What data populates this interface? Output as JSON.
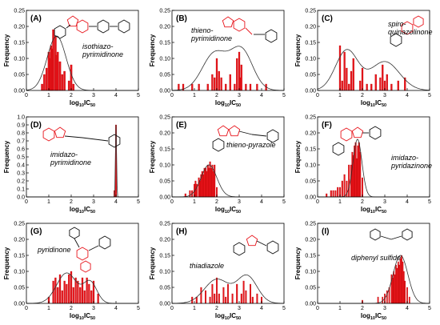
{
  "layout": {
    "cols": 3,
    "rows": 3
  },
  "chart_data": [
    {
      "type": "bar",
      "label": "(A)",
      "compound": "isothiazo-\npyrimidinone",
      "xlabel": "log10IC50",
      "ylabel": "Frequency",
      "xlim": [
        0,
        5
      ],
      "ylim": [
        0,
        0.25
      ],
      "xticks": [
        0,
        1,
        2,
        3,
        4,
        5
      ],
      "yticks": [
        0.0,
        0.05,
        0.1,
        0.15,
        0.2,
        0.25
      ],
      "bin_width": 0.08,
      "bins": [
        {
          "x": 0.7,
          "y": 0.02
        },
        {
          "x": 0.8,
          "y": 0.05
        },
        {
          "x": 0.9,
          "y": 0.07
        },
        {
          "x": 1.0,
          "y": 0.12
        },
        {
          "x": 1.05,
          "y": 0.1
        },
        {
          "x": 1.1,
          "y": 0.14
        },
        {
          "x": 1.15,
          "y": 0.13
        },
        {
          "x": 1.2,
          "y": 0.19
        },
        {
          "x": 1.3,
          "y": 0.17
        },
        {
          "x": 1.35,
          "y": 0.11
        },
        {
          "x": 1.4,
          "y": 0.12
        },
        {
          "x": 1.5,
          "y": 0.09
        },
        {
          "x": 1.6,
          "y": 0.05
        },
        {
          "x": 1.7,
          "y": 0.06
        },
        {
          "x": 1.9,
          "y": 0.03
        },
        {
          "x": 2.0,
          "y": 0.08
        },
        {
          "x": 2.1,
          "y": 0.02
        }
      ],
      "curve": {
        "type": "gauss",
        "mu": 1.35,
        "sigma": 0.42,
        "peak": 0.17
      }
    },
    {
      "type": "bar",
      "label": "(B)",
      "compound": "thieno-\npyrimidinone",
      "xlabel": "log10IC50",
      "ylabel": "Frequency",
      "xlim": [
        0,
        5
      ],
      "ylim": [
        0,
        0.25
      ],
      "xticks": [
        0,
        1,
        2,
        3,
        4,
        5
      ],
      "yticks": [
        0.0,
        0.05,
        0.1,
        0.15,
        0.2,
        0.25
      ],
      "bin_width": 0.07,
      "bins": [
        {
          "x": 0.3,
          "y": 0.02
        },
        {
          "x": 0.5,
          "y": 0.02
        },
        {
          "x": 0.9,
          "y": 0.02
        },
        {
          "x": 1.2,
          "y": 0.02
        },
        {
          "x": 1.6,
          "y": 0.02
        },
        {
          "x": 1.8,
          "y": 0.05
        },
        {
          "x": 1.9,
          "y": 0.04
        },
        {
          "x": 2.0,
          "y": 0.1
        },
        {
          "x": 2.1,
          "y": 0.06
        },
        {
          "x": 2.2,
          "y": 0.04
        },
        {
          "x": 2.4,
          "y": 0.02
        },
        {
          "x": 2.6,
          "y": 0.05
        },
        {
          "x": 2.8,
          "y": 0.02
        },
        {
          "x": 2.9,
          "y": 0.1
        },
        {
          "x": 3.0,
          "y": 0.12
        },
        {
          "x": 3.05,
          "y": 0.04
        },
        {
          "x": 3.1,
          "y": 0.08
        },
        {
          "x": 3.3,
          "y": 0.02
        },
        {
          "x": 3.5,
          "y": 0.02
        },
        {
          "x": 3.8,
          "y": 0.02
        },
        {
          "x": 4.2,
          "y": 0.02
        }
      ],
      "curve": {
        "type": "bimodal",
        "components": [
          {
            "mu": 1.9,
            "sigma": 0.55,
            "peak": 0.115
          },
          {
            "mu": 3.1,
            "sigma": 0.5,
            "peak": 0.125
          }
        ]
      }
    },
    {
      "type": "bar",
      "label": "(C)",
      "compound": "spiro-\nquinazolinone",
      "xlabel": "log10IC50",
      "ylabel": "Frequency",
      "xlim": [
        0,
        5
      ],
      "ylim": [
        0,
        0.25
      ],
      "xticks": [
        0,
        1,
        2,
        3,
        4,
        5
      ],
      "yticks": [
        0.0,
        0.05,
        0.1,
        0.15,
        0.2,
        0.25
      ],
      "bin_width": 0.07,
      "bins": [
        {
          "x": 1.0,
          "y": 0.14
        },
        {
          "x": 1.1,
          "y": 0.03
        },
        {
          "x": 1.2,
          "y": 0.12
        },
        {
          "x": 1.3,
          "y": 0.07
        },
        {
          "x": 1.4,
          "y": 0.02
        },
        {
          "x": 1.5,
          "y": 0.06
        },
        {
          "x": 1.6,
          "y": 0.1
        },
        {
          "x": 1.9,
          "y": 0.03
        },
        {
          "x": 2.0,
          "y": 0.07
        },
        {
          "x": 2.2,
          "y": 0.02
        },
        {
          "x": 2.4,
          "y": 0.02
        },
        {
          "x": 2.6,
          "y": 0.05
        },
        {
          "x": 2.8,
          "y": 0.04
        },
        {
          "x": 2.9,
          "y": 0.08
        },
        {
          "x": 3.0,
          "y": 0.03
        },
        {
          "x": 3.1,
          "y": 0.05
        },
        {
          "x": 3.3,
          "y": 0.02
        },
        {
          "x": 3.6,
          "y": 0.03
        },
        {
          "x": 3.9,
          "y": 0.04
        }
      ],
      "curve": {
        "type": "bimodal",
        "components": [
          {
            "mu": 1.3,
            "sigma": 0.5,
            "peak": 0.125
          },
          {
            "mu": 3.0,
            "sigma": 0.65,
            "peak": 0.09
          }
        ]
      }
    },
    {
      "type": "bar",
      "label": "(D)",
      "compound": "imidazo-\npyrimidinone",
      "xlabel": "log10IC50",
      "ylabel": "Frequency",
      "xlim": [
        0,
        5
      ],
      "ylim": [
        0,
        1.0
      ],
      "xticks": [
        0,
        1,
        2,
        3,
        4,
        5
      ],
      "yticks": [
        0.0,
        0.1,
        0.2,
        0.3,
        0.4,
        0.5,
        0.6,
        0.7,
        0.8,
        0.9,
        1.0
      ],
      "bin_width": 0.06,
      "bins": [
        {
          "x": 3.93,
          "y": 0.08
        },
        {
          "x": 4.0,
          "y": 0.9
        }
      ],
      "curve": {
        "type": "spike",
        "mu": 4.0,
        "sigma": 0.025,
        "peak": 0.9
      }
    },
    {
      "type": "bar",
      "label": "(E)",
      "compound": "thieno-pyrazole",
      "xlabel": "log10IC50",
      "ylabel": "Frequency",
      "xlim": [
        0,
        5
      ],
      "ylim": [
        0,
        0.25
      ],
      "xticks": [
        0,
        1,
        2,
        3,
        4,
        5
      ],
      "yticks": [
        0.0,
        0.05,
        0.1,
        0.15,
        0.2,
        0.25
      ],
      "bin_width": 0.06,
      "bins": [
        {
          "x": 0.6,
          "y": 0.01
        },
        {
          "x": 0.8,
          "y": 0.02
        },
        {
          "x": 0.9,
          "y": 0.02
        },
        {
          "x": 1.0,
          "y": 0.04
        },
        {
          "x": 1.05,
          "y": 0.05
        },
        {
          "x": 1.1,
          "y": 0.04
        },
        {
          "x": 1.2,
          "y": 0.06
        },
        {
          "x": 1.25,
          "y": 0.05
        },
        {
          "x": 1.3,
          "y": 0.07
        },
        {
          "x": 1.35,
          "y": 0.08
        },
        {
          "x": 1.4,
          "y": 0.07
        },
        {
          "x": 1.45,
          "y": 0.09
        },
        {
          "x": 1.5,
          "y": 0.09
        },
        {
          "x": 1.55,
          "y": 0.08
        },
        {
          "x": 1.6,
          "y": 0.1
        },
        {
          "x": 1.65,
          "y": 0.09
        },
        {
          "x": 1.7,
          "y": 0.11
        },
        {
          "x": 1.75,
          "y": 0.09
        },
        {
          "x": 1.8,
          "y": 0.1
        },
        {
          "x": 1.85,
          "y": 0.08
        },
        {
          "x": 1.9,
          "y": 0.1
        },
        {
          "x": 2.0,
          "y": 0.03
        }
      ],
      "curve": {
        "type": "gauss",
        "mu": 1.65,
        "sigma": 0.35,
        "peak": 0.1
      }
    },
    {
      "type": "bar",
      "label": "(F)",
      "compound": "imidazo-\npyridazinone",
      "xlabel": "log10IC50",
      "ylabel": "Frequency",
      "xlim": [
        0,
        5
      ],
      "ylim": [
        0,
        0.25
      ],
      "xticks": [
        0,
        1,
        2,
        3,
        4,
        5
      ],
      "yticks": [
        0.0,
        0.05,
        0.1,
        0.15,
        0.2,
        0.25
      ],
      "bin_width": 0.06,
      "bins": [
        {
          "x": 0.4,
          "y": 0.01
        },
        {
          "x": 0.6,
          "y": 0.02
        },
        {
          "x": 0.7,
          "y": 0.02
        },
        {
          "x": 0.8,
          "y": 0.02
        },
        {
          "x": 0.9,
          "y": 0.03
        },
        {
          "x": 1.0,
          "y": 0.03
        },
        {
          "x": 1.1,
          "y": 0.05
        },
        {
          "x": 1.2,
          "y": 0.07
        },
        {
          "x": 1.3,
          "y": 0.05
        },
        {
          "x": 1.4,
          "y": 0.1
        },
        {
          "x": 1.5,
          "y": 0.1
        },
        {
          "x": 1.55,
          "y": 0.14
        },
        {
          "x": 1.6,
          "y": 0.13
        },
        {
          "x": 1.65,
          "y": 0.16
        },
        {
          "x": 1.7,
          "y": 0.17
        },
        {
          "x": 1.75,
          "y": 0.12
        },
        {
          "x": 1.8,
          "y": 0.16
        },
        {
          "x": 1.85,
          "y": 0.17
        },
        {
          "x": 1.9,
          "y": 0.14
        },
        {
          "x": 2.0,
          "y": 0.06
        }
      ],
      "curve": {
        "type": "gauss",
        "mu": 1.78,
        "sigma": 0.2,
        "peak": 0.18
      }
    },
    {
      "type": "bar",
      "label": "(G)",
      "compound": "pyridinone",
      "xlabel": "log10IC50",
      "ylabel": "Frequency",
      "xlim": [
        0,
        5
      ],
      "ylim": [
        0,
        0.25
      ],
      "xticks": [
        0,
        1,
        2,
        3,
        4,
        5
      ],
      "yticks": [
        0.0,
        0.05,
        0.1,
        0.15,
        0.2,
        0.25
      ],
      "bin_width": 0.07,
      "bins": [
        {
          "x": 1.0,
          "y": 0.02
        },
        {
          "x": 1.2,
          "y": 0.07
        },
        {
          "x": 1.3,
          "y": 0.08
        },
        {
          "x": 1.4,
          "y": 0.05
        },
        {
          "x": 1.5,
          "y": 0.09
        },
        {
          "x": 1.6,
          "y": 0.04
        },
        {
          "x": 1.7,
          "y": 0.07
        },
        {
          "x": 1.8,
          "y": 0.06
        },
        {
          "x": 1.9,
          "y": 0.09
        },
        {
          "x": 2.0,
          "y": 0.1
        },
        {
          "x": 2.1,
          "y": 0.05
        },
        {
          "x": 2.2,
          "y": 0.08
        },
        {
          "x": 2.3,
          "y": 0.07
        },
        {
          "x": 2.4,
          "y": 0.05
        },
        {
          "x": 2.5,
          "y": 0.08
        },
        {
          "x": 2.6,
          "y": 0.04
        },
        {
          "x": 2.7,
          "y": 0.08
        },
        {
          "x": 2.8,
          "y": 0.06
        },
        {
          "x": 2.9,
          "y": 0.04
        },
        {
          "x": 3.0,
          "y": 0.07
        },
        {
          "x": 3.2,
          "y": 0.03
        }
      ],
      "curve": {
        "type": "bimodal",
        "components": [
          {
            "mu": 1.8,
            "sigma": 0.45,
            "peak": 0.095
          },
          {
            "mu": 2.85,
            "sigma": 0.3,
            "peak": 0.065
          }
        ]
      }
    },
    {
      "type": "bar",
      "label": "(H)",
      "compound": "thiadiazole",
      "xlabel": "log10IC50",
      "ylabel": "Frequency",
      "xlim": [
        0,
        5
      ],
      "ylim": [
        0,
        0.25
      ],
      "xticks": [
        0,
        1,
        2,
        3,
        4,
        5
      ],
      "yticks": [
        0.0,
        0.05,
        0.1,
        0.15,
        0.2,
        0.25
      ],
      "bin_width": 0.06,
      "bins": [
        {
          "x": 0.9,
          "y": 0.02
        },
        {
          "x": 1.1,
          "y": 0.02
        },
        {
          "x": 1.3,
          "y": 0.05
        },
        {
          "x": 1.5,
          "y": 0.04
        },
        {
          "x": 1.7,
          "y": 0.02
        },
        {
          "x": 1.8,
          "y": 0.06
        },
        {
          "x": 1.9,
          "y": 0.03
        },
        {
          "x": 2.0,
          "y": 0.08
        },
        {
          "x": 2.1,
          "y": 0.03
        },
        {
          "x": 2.3,
          "y": 0.05
        },
        {
          "x": 2.4,
          "y": 0.02
        },
        {
          "x": 2.5,
          "y": 0.06
        },
        {
          "x": 2.7,
          "y": 0.03
        },
        {
          "x": 2.9,
          "y": 0.06
        },
        {
          "x": 3.1,
          "y": 0.03
        },
        {
          "x": 3.2,
          "y": 0.07
        },
        {
          "x": 3.3,
          "y": 0.04
        },
        {
          "x": 3.5,
          "y": 0.06
        },
        {
          "x": 3.6,
          "y": 0.02
        },
        {
          "x": 3.8,
          "y": 0.03
        },
        {
          "x": 4.0,
          "y": 0.02
        }
      ],
      "curve": {
        "type": "bimodal",
        "components": [
          {
            "mu": 2.0,
            "sigma": 0.55,
            "peak": 0.075
          },
          {
            "mu": 3.35,
            "sigma": 0.45,
            "peak": 0.085
          }
        ]
      }
    },
    {
      "type": "bar",
      "label": "(I)",
      "compound": "diphenyl sulfide",
      "xlabel": "log10IC50",
      "ylabel": "Frequency",
      "xlim": [
        0,
        5
      ],
      "ylim": [
        0,
        0.25
      ],
      "xticks": [
        0,
        1,
        2,
        3,
        4,
        5
      ],
      "yticks": [
        0.0,
        0.05,
        0.1,
        0.15,
        0.2,
        0.25
      ],
      "bin_width": 0.05,
      "bins": [
        {
          "x": 2.0,
          "y": 0.01
        },
        {
          "x": 2.7,
          "y": 0.02
        },
        {
          "x": 2.9,
          "y": 0.02
        },
        {
          "x": 3.0,
          "y": 0.03
        },
        {
          "x": 3.1,
          "y": 0.04
        },
        {
          "x": 3.2,
          "y": 0.05
        },
        {
          "x": 3.3,
          "y": 0.09
        },
        {
          "x": 3.35,
          "y": 0.08
        },
        {
          "x": 3.4,
          "y": 0.1
        },
        {
          "x": 3.45,
          "y": 0.09
        },
        {
          "x": 3.5,
          "y": 0.12
        },
        {
          "x": 3.55,
          "y": 0.11
        },
        {
          "x": 3.6,
          "y": 0.13
        },
        {
          "x": 3.65,
          "y": 0.12
        },
        {
          "x": 3.7,
          "y": 0.14
        },
        {
          "x": 3.75,
          "y": 0.15
        },
        {
          "x": 3.8,
          "y": 0.13
        },
        {
          "x": 3.85,
          "y": 0.1
        },
        {
          "x": 3.9,
          "y": 0.07
        },
        {
          "x": 4.0,
          "y": 0.05
        },
        {
          "x": 4.1,
          "y": 0.02
        }
      ],
      "curve": {
        "type": "gauss",
        "mu": 3.7,
        "sigma": 0.33,
        "peak": 0.15
      }
    }
  ]
}
